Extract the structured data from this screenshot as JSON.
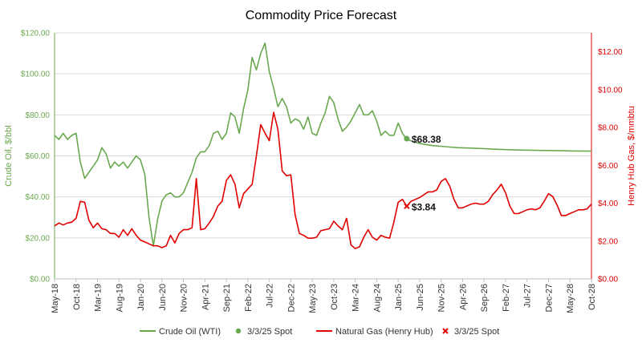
{
  "chart_data": {
    "type": "line",
    "title": "Commodity Price Forecast",
    "ylabel_left": "Crude Oil, $/bbl",
    "ylabel_right": "Henry Hub Gas, $/mmbtu",
    "ylim_left": [
      0,
      120
    ],
    "ylim_right": [
      0,
      13
    ],
    "yticks_left": [
      "$0.00",
      "$20.00",
      "$40.00",
      "$60.00",
      "$80.00",
      "$100.00",
      "$120.00"
    ],
    "yticks_right": [
      "$0.00",
      "$2.00",
      "$4.00",
      "$6.00",
      "$8.00",
      "$10.00",
      "$12.00"
    ],
    "x_start": "2018-05",
    "x_end": "2028-10",
    "x_tick_labels": [
      "May-18",
      "Oct-18",
      "Mar-19",
      "Aug-19",
      "Jan-20",
      "Jun-20",
      "Nov-20",
      "Apr-21",
      "Sep-21",
      "Feb-22",
      "Jul-22",
      "Dec-22",
      "May-23",
      "Oct-23",
      "Mar-24",
      "Aug-24",
      "Jan-25",
      "Jun-25",
      "Nov-25",
      "Apr-26",
      "Sep-26",
      "Feb-27",
      "Jul-27",
      "Dec-27",
      "May-28",
      "Oct-28"
    ],
    "grid": true,
    "legend_position": "bottom",
    "colors": {
      "oil": "#6aa84f",
      "gas": "#e00000"
    },
    "series": [
      {
        "name": "Crude Oil (WTI)",
        "axis": "left",
        "points": [
          [
            "2018-05",
            70
          ],
          [
            "2018-06",
            68
          ],
          [
            "2018-07",
            71
          ],
          [
            "2018-08",
            68
          ],
          [
            "2018-09",
            70
          ],
          [
            "2018-10",
            71
          ],
          [
            "2018-11",
            57
          ],
          [
            "2018-12",
            49
          ],
          [
            "2019-01",
            52
          ],
          [
            "2019-02",
            55
          ],
          [
            "2019-03",
            58
          ],
          [
            "2019-04",
            64
          ],
          [
            "2019-05",
            61
          ],
          [
            "2019-06",
            54
          ],
          [
            "2019-07",
            57
          ],
          [
            "2019-08",
            55
          ],
          [
            "2019-09",
            57
          ],
          [
            "2019-10",
            54
          ],
          [
            "2019-11",
            57
          ],
          [
            "2019-12",
            60
          ],
          [
            "2020-01",
            58
          ],
          [
            "2020-02",
            51
          ],
          [
            "2020-03",
            30
          ],
          [
            "2020-04",
            16
          ],
          [
            "2020-05",
            29
          ],
          [
            "2020-06",
            38
          ],
          [
            "2020-07",
            41
          ],
          [
            "2020-08",
            42
          ],
          [
            "2020-09",
            40
          ],
          [
            "2020-10",
            40
          ],
          [
            "2020-11",
            42
          ],
          [
            "2020-12",
            47
          ],
          [
            "2021-01",
            52
          ],
          [
            "2021-02",
            59
          ],
          [
            "2021-03",
            62
          ],
          [
            "2021-04",
            62
          ],
          [
            "2021-05",
            65
          ],
          [
            "2021-06",
            71
          ],
          [
            "2021-07",
            72
          ],
          [
            "2021-08",
            68
          ],
          [
            "2021-09",
            71
          ],
          [
            "2021-10",
            81
          ],
          [
            "2021-11",
            79
          ],
          [
            "2021-12",
            71
          ],
          [
            "2022-01",
            83
          ],
          [
            "2022-02",
            92
          ],
          [
            "2022-03",
            108
          ],
          [
            "2022-04",
            102
          ],
          [
            "2022-05",
            110
          ],
          [
            "2022-06",
            115
          ],
          [
            "2022-07",
            101
          ],
          [
            "2022-08",
            93
          ],
          [
            "2022-09",
            84
          ],
          [
            "2022-10",
            88
          ],
          [
            "2022-11",
            84
          ],
          [
            "2022-12",
            76
          ],
          [
            "2023-01",
            78
          ],
          [
            "2023-02",
            77
          ],
          [
            "2023-03",
            73
          ],
          [
            "2023-04",
            79
          ],
          [
            "2023-05",
            71
          ],
          [
            "2023-06",
            70
          ],
          [
            "2023-07",
            76
          ],
          [
            "2023-08",
            81
          ],
          [
            "2023-09",
            89
          ],
          [
            "2023-10",
            86
          ],
          [
            "2023-11",
            78
          ],
          [
            "2023-12",
            72
          ],
          [
            "2024-01",
            74
          ],
          [
            "2024-02",
            77
          ],
          [
            "2024-03",
            81
          ],
          [
            "2024-04",
            85
          ],
          [
            "2024-05",
            80
          ],
          [
            "2024-06",
            80
          ],
          [
            "2024-07",
            82
          ],
          [
            "2024-08",
            77
          ],
          [
            "2024-09",
            70
          ],
          [
            "2024-10",
            72
          ],
          [
            "2024-11",
            70
          ],
          [
            "2024-12",
            70
          ],
          [
            "2025-01",
            76
          ],
          [
            "2025-02",
            71
          ],
          [
            "2025-03",
            68
          ],
          [
            "2025-06",
            66
          ],
          [
            "2025-09",
            65
          ],
          [
            "2025-12",
            64.5
          ],
          [
            "2026-03",
            64
          ],
          [
            "2026-06",
            63.8
          ],
          [
            "2026-09",
            63.5
          ],
          [
            "2026-12",
            63.2
          ],
          [
            "2027-03",
            63
          ],
          [
            "2027-06",
            62.8
          ],
          [
            "2027-09",
            62.7
          ],
          [
            "2027-12",
            62.6
          ],
          [
            "2028-03",
            62.5
          ],
          [
            "2028-06",
            62.4
          ],
          [
            "2028-10",
            62.3
          ]
        ]
      },
      {
        "name": "3/3/25 Spot",
        "axis": "left",
        "marker": "circle",
        "points": [
          [
            "2025-03",
            68.38
          ]
        ],
        "label": "$68.38"
      },
      {
        "name": "Natural Gas (Henry Hub)",
        "axis": "right",
        "points": [
          [
            "2018-05",
            2.8
          ],
          [
            "2018-06",
            2.95
          ],
          [
            "2018-07",
            2.85
          ],
          [
            "2018-08",
            2.95
          ],
          [
            "2018-09",
            3.0
          ],
          [
            "2018-10",
            3.2
          ],
          [
            "2018-11",
            4.1
          ],
          [
            "2018-12",
            4.05
          ],
          [
            "2019-01",
            3.1
          ],
          [
            "2019-02",
            2.7
          ],
          [
            "2019-03",
            2.95
          ],
          [
            "2019-04",
            2.65
          ],
          [
            "2019-05",
            2.6
          ],
          [
            "2019-06",
            2.4
          ],
          [
            "2019-07",
            2.4
          ],
          [
            "2019-08",
            2.2
          ],
          [
            "2019-09",
            2.6
          ],
          [
            "2019-10",
            2.3
          ],
          [
            "2019-11",
            2.65
          ],
          [
            "2019-12",
            2.3
          ],
          [
            "2020-01",
            2.05
          ],
          [
            "2020-02",
            1.95
          ],
          [
            "2020-03",
            1.85
          ],
          [
            "2020-04",
            1.75
          ],
          [
            "2020-05",
            1.75
          ],
          [
            "2020-06",
            1.65
          ],
          [
            "2020-07",
            1.75
          ],
          [
            "2020-08",
            2.3
          ],
          [
            "2020-09",
            1.9
          ],
          [
            "2020-10",
            2.4
          ],
          [
            "2020-11",
            2.6
          ],
          [
            "2020-12",
            2.6
          ],
          [
            "2021-01",
            2.7
          ],
          [
            "2021-02",
            5.3
          ],
          [
            "2021-03",
            2.6
          ],
          [
            "2021-04",
            2.65
          ],
          [
            "2021-05",
            2.95
          ],
          [
            "2021-06",
            3.3
          ],
          [
            "2021-07",
            3.85
          ],
          [
            "2021-08",
            4.1
          ],
          [
            "2021-09",
            5.2
          ],
          [
            "2021-10",
            5.5
          ],
          [
            "2021-11",
            5.0
          ],
          [
            "2021-12",
            3.75
          ],
          [
            "2022-01",
            4.5
          ],
          [
            "2022-02",
            4.75
          ],
          [
            "2022-03",
            5.0
          ],
          [
            "2022-04",
            6.5
          ],
          [
            "2022-05",
            8.15
          ],
          [
            "2022-06",
            7.7
          ],
          [
            "2022-07",
            7.3
          ],
          [
            "2022-08",
            8.8
          ],
          [
            "2022-09",
            7.9
          ],
          [
            "2022-10",
            5.7
          ],
          [
            "2022-11",
            5.45
          ],
          [
            "2022-12",
            5.5
          ],
          [
            "2023-01",
            3.4
          ],
          [
            "2023-02",
            2.4
          ],
          [
            "2023-03",
            2.3
          ],
          [
            "2023-04",
            2.15
          ],
          [
            "2023-05",
            2.15
          ],
          [
            "2023-06",
            2.2
          ],
          [
            "2023-07",
            2.55
          ],
          [
            "2023-08",
            2.6
          ],
          [
            "2023-09",
            2.65
          ],
          [
            "2023-10",
            3.05
          ],
          [
            "2023-11",
            2.8
          ],
          [
            "2023-12",
            2.6
          ],
          [
            "2024-01",
            3.2
          ],
          [
            "2024-02",
            1.8
          ],
          [
            "2024-03",
            1.6
          ],
          [
            "2024-04",
            1.7
          ],
          [
            "2024-05",
            2.2
          ],
          [
            "2024-06",
            2.6
          ],
          [
            "2024-07",
            2.2
          ],
          [
            "2024-08",
            2.05
          ],
          [
            "2024-09",
            2.3
          ],
          [
            "2024-10",
            2.2
          ],
          [
            "2024-11",
            2.15
          ],
          [
            "2024-12",
            3.0
          ],
          [
            "2025-01",
            4.05
          ],
          [
            "2025-02",
            4.2
          ],
          [
            "2025-03",
            3.84
          ],
          [
            "2025-04",
            4.1
          ],
          [
            "2025-06",
            4.3
          ],
          [
            "2025-08",
            4.6
          ],
          [
            "2025-09",
            4.6
          ],
          [
            "2025-10",
            4.7
          ],
          [
            "2025-11",
            5.15
          ],
          [
            "2025-12",
            5.3
          ],
          [
            "2026-01",
            4.9
          ],
          [
            "2026-02",
            4.2
          ],
          [
            "2026-03",
            3.75
          ],
          [
            "2026-04",
            3.75
          ],
          [
            "2026-06",
            3.95
          ],
          [
            "2026-07",
            4.0
          ],
          [
            "2026-08",
            3.95
          ],
          [
            "2026-09",
            3.95
          ],
          [
            "2026-10",
            4.1
          ],
          [
            "2026-11",
            4.45
          ],
          [
            "2026-12",
            4.7
          ],
          [
            "2027-01",
            5.0
          ],
          [
            "2027-02",
            4.55
          ],
          [
            "2027-03",
            3.85
          ],
          [
            "2027-04",
            3.45
          ],
          [
            "2027-05",
            3.45
          ],
          [
            "2027-06",
            3.55
          ],
          [
            "2027-07",
            3.65
          ],
          [
            "2027-08",
            3.7
          ],
          [
            "2027-09",
            3.65
          ],
          [
            "2027-10",
            3.75
          ],
          [
            "2027-11",
            4.1
          ],
          [
            "2027-12",
            4.5
          ],
          [
            "2028-01",
            4.35
          ],
          [
            "2028-02",
            3.9
          ],
          [
            "2028-03",
            3.35
          ],
          [
            "2028-04",
            3.35
          ],
          [
            "2028-05",
            3.45
          ],
          [
            "2028-06",
            3.55
          ],
          [
            "2028-07",
            3.65
          ],
          [
            "2028-08",
            3.65
          ],
          [
            "2028-09",
            3.7
          ],
          [
            "2028-10",
            3.95
          ]
        ]
      },
      {
        "name": "3/3/25 Spot",
        "axis": "right",
        "marker": "x",
        "points": [
          [
            "2025-03",
            3.84
          ]
        ],
        "label": "$3.84"
      }
    ]
  }
}
